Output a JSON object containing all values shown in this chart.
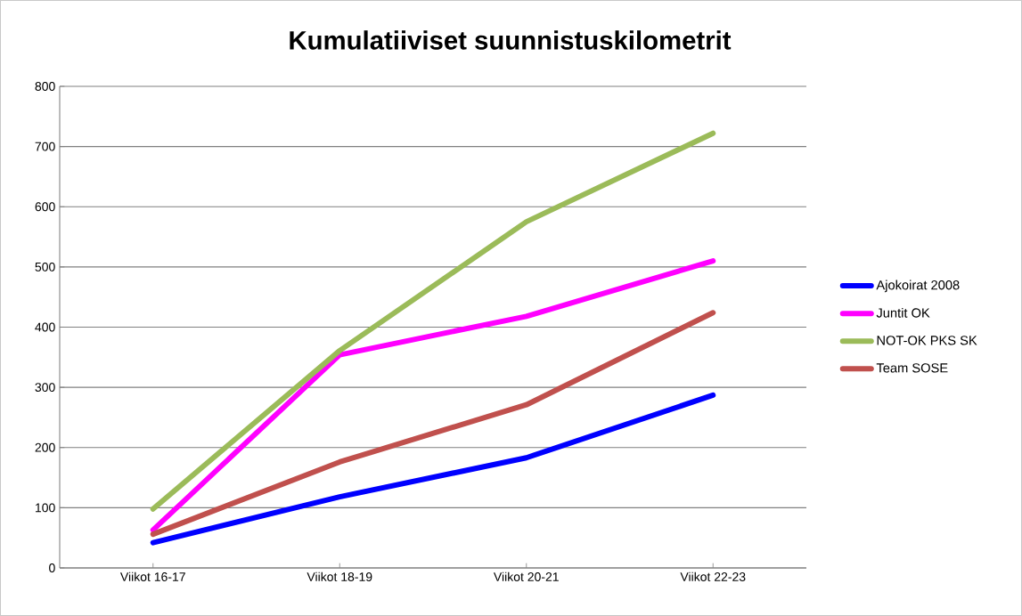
{
  "chart_data": {
    "type": "line",
    "title": "Kumulatiiviset suunnistuskilometrit",
    "categories": [
      "Viikot 16-17",
      "Viikot 18-19",
      "Viikot 20-21",
      "Viikot 22-23"
    ],
    "series": [
      {
        "name": "Ajokoirat 2008",
        "color": "#0000ff",
        "values": [
          42,
          118,
          183,
          287
        ]
      },
      {
        "name": "Juntit OK",
        "color": "#ff00ff",
        "values": [
          63,
          354,
          418,
          510
        ]
      },
      {
        "name": "NOT-OK PKS SK",
        "color": "#9bbb59",
        "values": [
          98,
          361,
          575,
          722
        ]
      },
      {
        "name": "Team SOSE",
        "color": "#c0504d",
        "values": [
          56,
          176,
          271,
          424
        ]
      }
    ],
    "ylim": [
      0,
      800
    ],
    "yticks": [
      0,
      100,
      200,
      300,
      400,
      500,
      600,
      700,
      800
    ],
    "grid": "y",
    "legend": "right",
    "marker": "none",
    "line_style": "solid"
  }
}
